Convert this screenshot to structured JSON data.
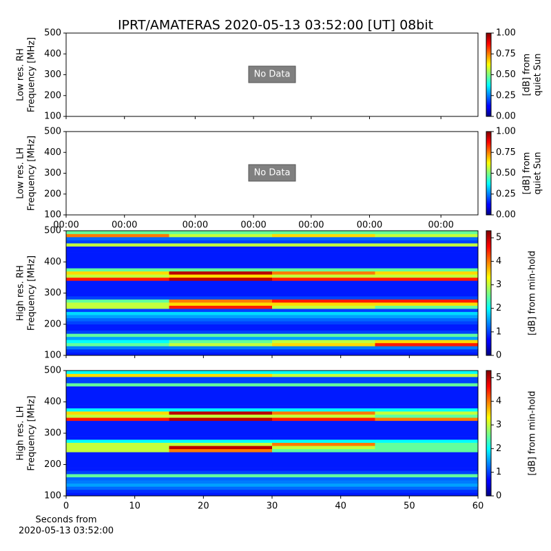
{
  "title": "IPRT/AMATERAS 2020-05-13 03:52:00 [UT]   08bit",
  "chart_data": [
    {
      "type": "empty",
      "annotation": "No Data",
      "ylabel": [
        "Low res. RH",
        "Frequency [MHz]"
      ],
      "ylim": [
        100,
        500
      ],
      "yticks": [
        100,
        200,
        300,
        400,
        500
      ],
      "colorbar_label": [
        "[dB] from",
        "quiet Sun"
      ],
      "colormap": "jet",
      "clim": [
        0,
        1
      ],
      "cticks": [
        {
          "value": 0,
          "label": "0.00"
        },
        {
          "value": 0.25,
          "label": "0.25"
        },
        {
          "value": 0.5,
          "label": "0.50"
        },
        {
          "value": 0.75,
          "label": "0.75"
        },
        {
          "value": 1,
          "label": "1.00"
        }
      ],
      "xlim": [
        0,
        60
      ],
      "xticks": [
        0,
        8.5,
        18.8,
        27.3,
        35.7,
        44.2,
        54.6
      ]
    },
    {
      "type": "empty",
      "annotation": "No Data",
      "ylabel": [
        "Low res. LH",
        "Frequency [MHz]"
      ],
      "ylim": [
        100,
        500
      ],
      "yticks": [
        100,
        200,
        300,
        400,
        500
      ],
      "colorbar_label": [
        "[dB] from",
        "quiet Sun"
      ],
      "colormap": "jet",
      "clim": [
        0,
        1
      ],
      "cticks": [
        {
          "value": 0,
          "label": "0.00"
        },
        {
          "value": 0.25,
          "label": "0.25"
        },
        {
          "value": 0.5,
          "label": "0.50"
        },
        {
          "value": 0.75,
          "label": "0.75"
        },
        {
          "value": 1,
          "label": "1.00"
        }
      ],
      "xlim": [
        0,
        60
      ],
      "xticks": [
        {
          "value": 0,
          "label": "00:00"
        },
        {
          "value": 8.5,
          "label": "00:00"
        },
        {
          "value": 18.8,
          "label": "00:00"
        },
        {
          "value": 27.3,
          "label": "00:00"
        },
        {
          "value": 35.7,
          "label": "00:00"
        },
        {
          "value": 44.2,
          "label": "00:00"
        },
        {
          "value": 54.6,
          "label": "00:00"
        }
      ]
    },
    {
      "type": "heatmap",
      "ylabel": [
        "High res. RH",
        "Frequency [MHz]"
      ],
      "ylim": [
        100,
        500
      ],
      "yticks": [
        100,
        200,
        300,
        400,
        500
      ],
      "colorbar_label": [
        "[dB] from min-hold"
      ],
      "colormap": "jet",
      "clim": [
        0,
        5.3
      ],
      "cticks": [
        0,
        1,
        2,
        3,
        4,
        5
      ],
      "xlim": [
        0,
        60
      ],
      "xticks": [
        0,
        10,
        20,
        30,
        40,
        50,
        60
      ],
      "xbins": [
        0,
        15,
        30,
        45,
        60
      ],
      "ybins": [
        100,
        110,
        120,
        130,
        140,
        150,
        160,
        170,
        180,
        190,
        200,
        210,
        220,
        230,
        240,
        250,
        260,
        270,
        280,
        290,
        300,
        310,
        320,
        330,
        340,
        350,
        360,
        370,
        380,
        390,
        400,
        410,
        420,
        430,
        440,
        450,
        460,
        470,
        480,
        490,
        500
      ],
      "z": [
        [
          0.8,
          0.8,
          0.8,
          0.8
        ],
        [
          0.9,
          0.9,
          0.9,
          0.9
        ],
        [
          1.3,
          1.3,
          1.3,
          1.3
        ],
        [
          2.5,
          3,
          3.5,
          4.5
        ],
        [
          2,
          2.5,
          3,
          3.5
        ],
        [
          1.5,
          1.5,
          1.5,
          1.5
        ],
        [
          2.5,
          2.5,
          2.5,
          2.5
        ],
        [
          1,
          1,
          1,
          1
        ],
        [
          0.8,
          0.8,
          0.8,
          0.8
        ],
        [
          0.8,
          0.8,
          0.8,
          0.8
        ],
        [
          1,
          1,
          1,
          1
        ],
        [
          1.2,
          1.2,
          1.2,
          1.2
        ],
        [
          1.5,
          1.5,
          1.5,
          1.5
        ],
        [
          1.8,
          1.8,
          1.8,
          1.8
        ],
        [
          1,
          1,
          1,
          1
        ],
        [
          3,
          4.5,
          3,
          2.5
        ],
        [
          3,
          3.5,
          3.5,
          3.5
        ],
        [
          2.5,
          4,
          4.5,
          4.5
        ],
        [
          1,
          1,
          1,
          1
        ],
        [
          0.8,
          0.8,
          0.8,
          0.8
        ],
        [
          0.8,
          0.8,
          0.8,
          0.8
        ],
        [
          0.8,
          0.8,
          0.8,
          0.8
        ],
        [
          0.8,
          0.8,
          0.8,
          0.8
        ],
        [
          0.8,
          0.8,
          0.8,
          0.8
        ],
        [
          4.5,
          5,
          4.5,
          4.5
        ],
        [
          3,
          3.5,
          3,
          3
        ],
        [
          3.5,
          5,
          4,
          3.5
        ],
        [
          2.5,
          2.5,
          2.5,
          2.5
        ],
        [
          0.8,
          0.8,
          0.8,
          0.8
        ],
        [
          0.8,
          0.8,
          0.8,
          0.8
        ],
        [
          0.8,
          0.8,
          0.8,
          0.8
        ],
        [
          0.8,
          0.8,
          0.8,
          0.8
        ],
        [
          0.8,
          0.8,
          0.8,
          0.8
        ],
        [
          0.8,
          0.8,
          0.8,
          0.8
        ],
        [
          0.8,
          0.8,
          0.8,
          0.8
        ],
        [
          3,
          3,
          3,
          3
        ],
        [
          1,
          1,
          1,
          1
        ],
        [
          1.2,
          1.2,
          1.2,
          1.2
        ],
        [
          4,
          3,
          3.5,
          3
        ],
        [
          2.5,
          2.5,
          2.5,
          2.5
        ]
      ]
    },
    {
      "type": "heatmap",
      "ylabel": [
        "High res. LH",
        "Frequency [MHz]"
      ],
      "ylim": [
        100,
        500
      ],
      "yticks": [
        100,
        200,
        300,
        400,
        500
      ],
      "colorbar_label": [
        "[dB] from min-hold"
      ],
      "colormap": "jet",
      "clim": [
        0,
        5.3
      ],
      "cticks": [
        0,
        1,
        2,
        3,
        4,
        5
      ],
      "xlabel": [
        "Seconds from",
        "2020-05-13 03:52:00"
      ],
      "xlim": [
        0,
        60
      ],
      "xticks": [
        0,
        10,
        20,
        30,
        40,
        50,
        60
      ],
      "xbins": [
        0,
        15,
        30,
        45,
        60
      ],
      "ybins": [
        100,
        110,
        120,
        130,
        140,
        150,
        160,
        170,
        180,
        190,
        200,
        210,
        220,
        230,
        240,
        250,
        260,
        270,
        280,
        290,
        300,
        310,
        320,
        330,
        340,
        350,
        360,
        370,
        380,
        390,
        400,
        410,
        420,
        430,
        440,
        450,
        460,
        470,
        480,
        490,
        500
      ],
      "z": [
        [
          0.8,
          0.8,
          0.8,
          0.8
        ],
        [
          0.9,
          0.9,
          0.9,
          0.9
        ],
        [
          1.2,
          1.2,
          1.2,
          1.2
        ],
        [
          1.5,
          1.5,
          1.5,
          1.5
        ],
        [
          1.3,
          1.3,
          1.3,
          1.3
        ],
        [
          1.2,
          1.2,
          1.2,
          1.2
        ],
        [
          2.5,
          2.5,
          2.5,
          2.5
        ],
        [
          1,
          1,
          1,
          1
        ],
        [
          0.8,
          0.8,
          0.8,
          0.8
        ],
        [
          0.8,
          0.8,
          0.8,
          0.8
        ],
        [
          0.8,
          0.8,
          0.8,
          0.8
        ],
        [
          0.8,
          0.8,
          0.8,
          0.8
        ],
        [
          0.8,
          0.8,
          0.8,
          0.8
        ],
        [
          0.8,
          0.8,
          0.8,
          0.8
        ],
        [
          3,
          4,
          2.5,
          2.5
        ],
        [
          3,
          5,
          3,
          2.5
        ],
        [
          3,
          3,
          4,
          2.5
        ],
        [
          2,
          2,
          2,
          2
        ],
        [
          0.8,
          0.8,
          0.8,
          0.8
        ],
        [
          0.8,
          0.8,
          0.8,
          0.8
        ],
        [
          0.8,
          0.8,
          0.8,
          0.8
        ],
        [
          0.8,
          0.8,
          0.8,
          0.8
        ],
        [
          0.8,
          0.8,
          0.8,
          0.8
        ],
        [
          0.8,
          0.8,
          0.8,
          0.8
        ],
        [
          4.5,
          5,
          4.5,
          4
        ],
        [
          3,
          3,
          3,
          2.5
        ],
        [
          3.5,
          5,
          4,
          3
        ],
        [
          2,
          2,
          2,
          2
        ],
        [
          0.8,
          0.8,
          0.8,
          0.8
        ],
        [
          0.8,
          0.8,
          0.8,
          0.8
        ],
        [
          0.8,
          0.8,
          0.8,
          0.8
        ],
        [
          0.8,
          0.8,
          0.8,
          0.8
        ],
        [
          0.8,
          0.8,
          0.8,
          0.8
        ],
        [
          0.8,
          0.8,
          0.8,
          0.8
        ],
        [
          0.8,
          0.8,
          0.8,
          0.8
        ],
        [
          2.5,
          2.5,
          2.5,
          2.5
        ],
        [
          1,
          1,
          1,
          1
        ],
        [
          1,
          1,
          1,
          1
        ],
        [
          3.5,
          3.5,
          3,
          3
        ],
        [
          2,
          2,
          2,
          2
        ]
      ]
    }
  ]
}
